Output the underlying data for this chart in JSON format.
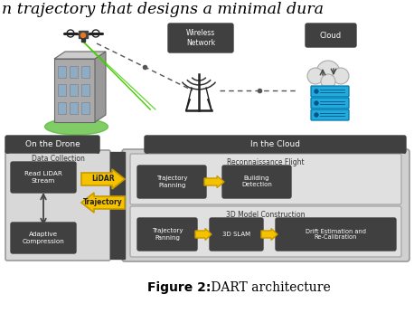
{
  "title_bold": "Figure 2:",
  "title_normal": " DART architecture",
  "header_text": "n trajectory that designs a minimal dura",
  "bg_color": "#ffffff",
  "dark_box_color": "#404040",
  "arrow_color": "#f5c200",
  "arrow_outline": "#c89a00",
  "drone_label": "On the Drone",
  "cloud_label": "In the Cloud",
  "wireless_label": "Wireless\nNetwork",
  "cloud_icon_label": "Cloud",
  "data_collection_label": "Data Collection",
  "read_lidar_label": "Read LiDAR\nStream",
  "adaptive_label": "Adaptive\nCompression",
  "lidar_label": "LiDAR",
  "trajectory_label": "Trajectory",
  "recon_label": "Reconnaissance Flight",
  "traj_planning_label1": "Trajectory\nPlanning",
  "building_det_label": "Building\nDetection",
  "model3d_label": "3D Model Construction",
  "traj_planning_label2": "Trajectory\nPanning",
  "slam_label": "3D SLAM",
  "drift_label": "Drift Estimation and\nRe-Calibration"
}
